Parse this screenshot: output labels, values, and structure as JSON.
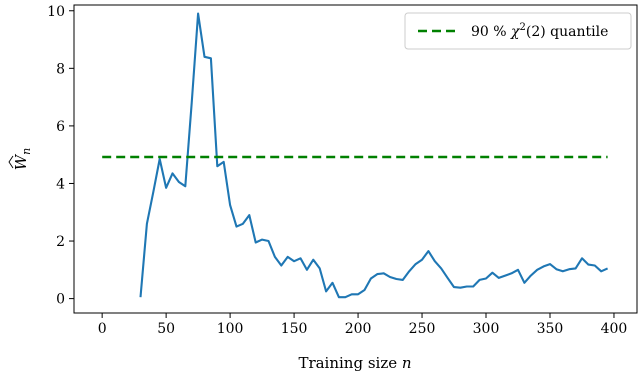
{
  "chart_data": {
    "type": "line",
    "xlabel": {
      "text": "Training size ",
      "var": "n"
    },
    "ylabel": {
      "symbol": "W",
      "sub": "n",
      "hat": true
    },
    "xlim": [
      -22,
      418
    ],
    "ylim": [
      -0.5,
      10.2
    ],
    "xticks": [
      0,
      50,
      100,
      150,
      200,
      250,
      300,
      350,
      400
    ],
    "yticks": [
      0,
      2,
      4,
      6,
      8,
      10
    ],
    "grid": false,
    "legend_position": "top-right",
    "series": [
      {
        "role": "observed",
        "color": "#1f77b4",
        "style": "solid",
        "x": [
          30,
          35,
          40,
          45,
          50,
          55,
          60,
          65,
          70,
          75,
          80,
          85,
          90,
          95,
          100,
          105,
          110,
          115,
          120,
          125,
          130,
          135,
          140,
          145,
          150,
          155,
          160,
          165,
          170,
          175,
          180,
          185,
          190,
          195,
          200,
          205,
          210,
          215,
          220,
          225,
          230,
          235,
          240,
          245,
          250,
          255,
          260,
          265,
          270,
          275,
          280,
          285,
          290,
          295,
          300,
          305,
          310,
          315,
          320,
          325,
          330,
          335,
          340,
          345,
          350,
          355,
          360,
          365,
          370,
          375,
          380,
          385,
          390,
          395
        ],
        "y": [
          0.05,
          2.6,
          3.7,
          4.85,
          3.85,
          4.35,
          4.05,
          3.9,
          6.8,
          9.9,
          8.4,
          8.35,
          4.6,
          4.75,
          3.25,
          2.5,
          2.6,
          2.9,
          1.95,
          2.05,
          2.0,
          1.45,
          1.15,
          1.45,
          1.3,
          1.4,
          1.0,
          1.35,
          1.05,
          0.25,
          0.55,
          0.05,
          0.05,
          0.15,
          0.15,
          0.3,
          0.7,
          0.85,
          0.88,
          0.75,
          0.68,
          0.65,
          0.95,
          1.2,
          1.35,
          1.65,
          1.3,
          1.05,
          0.72,
          0.4,
          0.38,
          0.42,
          0.42,
          0.65,
          0.7,
          0.9,
          0.72,
          0.8,
          0.88,
          1.0,
          0.55,
          0.8,
          1.0,
          1.12,
          1.2,
          1.02,
          0.95,
          1.02,
          1.05,
          1.4,
          1.18,
          1.15,
          0.95,
          1.05
        ]
      },
      {
        "role": "quantile",
        "color": "#008000",
        "style": "dashed",
        "x": [
          0,
          395
        ],
        "y": [
          4.92,
          4.92
        ]
      }
    ],
    "legend": {
      "prefix": "90 % ",
      "chi_symbol": "χ",
      "chi_exp": "2",
      "chi_arg": "(2)",
      "suffix": " quantile"
    }
  }
}
